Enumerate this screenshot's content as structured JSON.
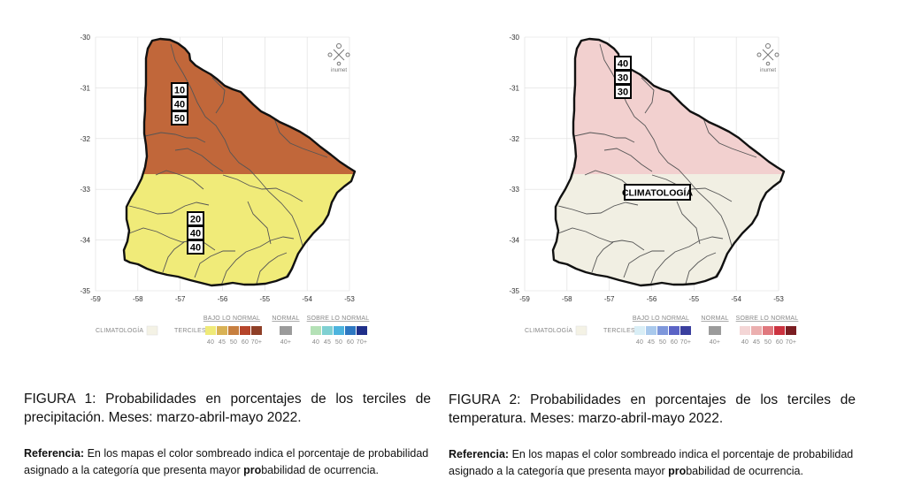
{
  "maps": [
    {
      "lat_ticks": [
        "-30",
        "-31",
        "-32",
        "-33",
        "-34",
        "-35"
      ],
      "lon_ticks": [
        "-59",
        "-58",
        "-57",
        "-56",
        "-55",
        "-54",
        "-53"
      ],
      "regions": [
        {
          "fill": "#C1673A",
          "label_lines": [
            "10",
            "40",
            "50"
          ]
        },
        {
          "fill": "#F0EB79",
          "label_lines": [
            "20",
            "40",
            "40"
          ]
        }
      ],
      "logo_text": "inumet",
      "legend": {
        "climatologia": "CLIMATOLOGÍA",
        "terciles": "TERCILES",
        "bajo": "BAJO LO NORMAL",
        "normal": "NORMAL",
        "sobre": "SOBRE LO NORMAL",
        "bajo_colors": [
          "#EFEA78",
          "#D9B255",
          "#C77F3F",
          "#B6452B",
          "#8F3F27"
        ],
        "normal_color": "#9B9B9B",
        "sobre_colors": [
          "#B4E1B6",
          "#7FD0D2",
          "#4DB4DE",
          "#2E78C2",
          "#1F2F8A"
        ],
        "scale": [
          "40",
          "45",
          "50",
          "60",
          "70+"
        ],
        "normal_scale": "40+"
      }
    },
    {
      "lat_ticks": [
        "-30",
        "-31",
        "-32",
        "-33",
        "-34",
        "-35"
      ],
      "lon_ticks": [
        "-59",
        "-58",
        "-57",
        "-56",
        "-55",
        "-54",
        "-53"
      ],
      "regions": [
        {
          "fill": "#F2D0CF",
          "label_lines": [
            "40",
            "30",
            "30"
          ]
        },
        {
          "fill": "#F1EFE3",
          "label_lines": [
            "CLIMATOLOGÍA"
          ]
        }
      ],
      "logo_text": "inumet",
      "legend": {
        "climatologia": "CLIMATOLOGÍA",
        "terciles": "TERCILES",
        "bajo": "BAJO LO NORMAL",
        "normal": "NORMAL",
        "sobre": "SOBRE LO NORMAL",
        "bajo_colors": [
          "#D9EEF6",
          "#A9C9EC",
          "#7E97DB",
          "#5B64C6",
          "#3A3F9E"
        ],
        "normal_color": "#9B9B9B",
        "sobre_colors": [
          "#F4D6D6",
          "#EBAFAF",
          "#E0787E",
          "#CC3340",
          "#7B1E22"
        ],
        "scale": [
          "40",
          "45",
          "50",
          "60",
          "70+"
        ],
        "normal_scale": "40+"
      }
    }
  ],
  "captions": [
    {
      "figure": "FIGURA 1: Probabilidades en porcentajes de los terciles de precipitación. Meses: marzo-abril-mayo 2022.",
      "ref_label": "Referencia:",
      "ref_pre": " En los mapas el color sombreado indica el porcentaje de probabilidad asignado a la categoría que presenta mayor ",
      "ref_bold": "pro",
      "ref_post": "babilidad de ocurrencia."
    },
    {
      "figure": "FIGURA 2: Probabilidades en porcentajes de los terciles de temperatura. Meses: marzo-abril-mayo 2022.",
      "ref_label": "Referencia:",
      "ref_pre": " En los mapas el color sombreado indica el porcentaje de probabilidad asignado a la categoría que presenta mayor ",
      "ref_bold": "pro",
      "ref_post": "babilidad de ocurrencia."
    }
  ]
}
